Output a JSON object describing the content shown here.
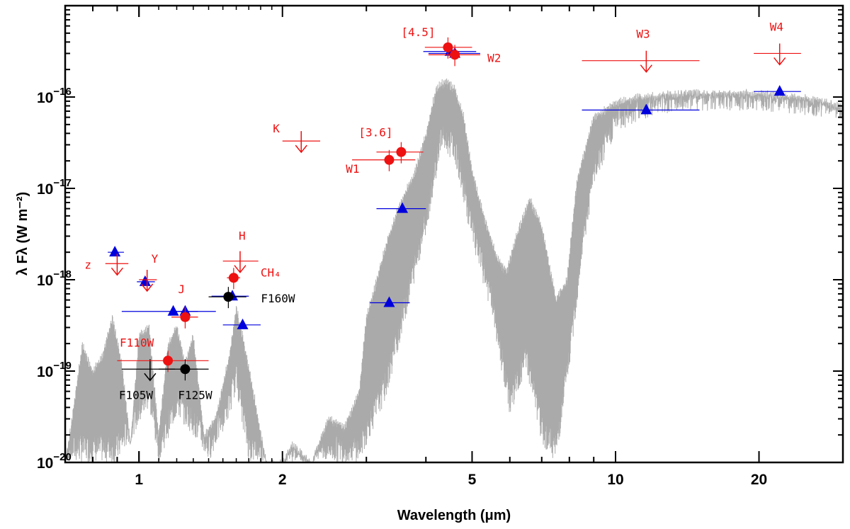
{
  "chart_data": {
    "type": "scatter",
    "title": "",
    "xlabel": "Wavelength (μm)",
    "ylabel": "λ Fλ (W m⁻²)",
    "xscale": "log",
    "yscale": "log",
    "xlim": [
      0.7,
      30
    ],
    "ylim": [
      1e-20,
      1e-15
    ],
    "x_ticks": [
      {
        "value": 1,
        "label": "1"
      },
      {
        "value": 2,
        "label": "2"
      },
      {
        "value": 5,
        "label": "5"
      },
      {
        "value": 10,
        "label": "10"
      },
      {
        "value": 20,
        "label": "20"
      }
    ],
    "y_ticks": [
      {
        "value": 1e-20,
        "base": "10",
        "exp": "−20"
      },
      {
        "value": 1e-19,
        "base": "10",
        "exp": "−19"
      },
      {
        "value": 1e-18,
        "base": "10",
        "exp": "−18"
      },
      {
        "value": 1e-17,
        "base": "10",
        "exp": "−17"
      },
      {
        "value": 1e-16,
        "base": "10",
        "exp": "−16"
      }
    ],
    "colors": {
      "model": "#aaaaaa",
      "observed": "#ee1111",
      "hst": "#000000",
      "synthetic": "#0000dd"
    },
    "model_spectrum": {
      "name": "model spectrum",
      "envelope": [
        [
          0.7,
          -20.0
        ],
        [
          0.72,
          -19.6
        ],
        [
          0.76,
          -18.7
        ],
        [
          0.8,
          -19.0
        ],
        [
          0.84,
          -18.8
        ],
        [
          0.88,
          -18.4
        ],
        [
          0.92,
          -18.9
        ],
        [
          0.96,
          -19.8
        ],
        [
          1.0,
          -18.6
        ],
        [
          1.05,
          -18.5
        ],
        [
          1.1,
          -19.7
        ],
        [
          1.15,
          -18.7
        ],
        [
          1.2,
          -18.5
        ],
        [
          1.25,
          -18.9
        ],
        [
          1.3,
          -18.6
        ],
        [
          1.37,
          -19.7
        ],
        [
          1.45,
          -19.5
        ],
        [
          1.55,
          -18.8
        ],
        [
          1.6,
          -18.3
        ],
        [
          1.65,
          -18.6
        ],
        [
          1.75,
          -19.3
        ],
        [
          1.85,
          -20.0
        ],
        [
          2.0,
          -20.0
        ],
        [
          2.1,
          -19.8
        ],
        [
          2.3,
          -20.0
        ],
        [
          2.5,
          -19.5
        ],
        [
          2.7,
          -19.6
        ],
        [
          2.9,
          -19.2
        ],
        [
          3.0,
          -18.4
        ],
        [
          3.15,
          -18.0
        ],
        [
          3.3,
          -17.6
        ],
        [
          3.5,
          -17.2
        ],
        [
          3.8,
          -16.8
        ],
        [
          4.0,
          -16.4
        ],
        [
          4.2,
          -15.9
        ],
        [
          4.4,
          -15.8
        ],
        [
          4.6,
          -15.9
        ],
        [
          4.8,
          -16.2
        ],
        [
          5.0,
          -16.8
        ],
        [
          5.3,
          -17.3
        ],
        [
          5.6,
          -17.7
        ],
        [
          5.9,
          -17.9
        ],
        [
          6.2,
          -17.5
        ],
        [
          6.6,
          -17.1
        ],
        [
          7.0,
          -17.4
        ],
        [
          7.5,
          -18.2
        ],
        [
          7.9,
          -18.0
        ],
        [
          8.3,
          -16.9
        ],
        [
          9.0,
          -16.2
        ],
        [
          10.0,
          -16.05
        ],
        [
          11.0,
          -16.0
        ],
        [
          12.0,
          -15.98
        ],
        [
          14.0,
          -15.95
        ],
        [
          16.0,
          -15.95
        ],
        [
          20.0,
          -15.95
        ],
        [
          25.0,
          -16.0
        ],
        [
          30.0,
          -16.1
        ]
      ],
      "trough": [
        [
          0.7,
          -20.0
        ],
        [
          0.9,
          -20.0
        ],
        [
          1.0,
          -19.6
        ],
        [
          1.05,
          -19.4
        ],
        [
          1.1,
          -20.0
        ],
        [
          1.2,
          -19.5
        ],
        [
          1.3,
          -19.7
        ],
        [
          1.4,
          -20.0
        ],
        [
          1.55,
          -19.5
        ],
        [
          1.6,
          -19.2
        ],
        [
          1.7,
          -20.0
        ],
        [
          2.9,
          -20.0
        ],
        [
          3.3,
          -19.3
        ],
        [
          3.6,
          -18.5
        ],
        [
          4.0,
          -17.5
        ],
        [
          4.3,
          -16.6
        ],
        [
          4.6,
          -16.7
        ],
        [
          5.0,
          -17.6
        ],
        [
          5.5,
          -18.4
        ],
        [
          6.0,
          -19.5
        ],
        [
          6.5,
          -19.0
        ],
        [
          7.0,
          -19.8
        ],
        [
          7.5,
          -20.0
        ],
        [
          8.0,
          -19.0
        ],
        [
          8.5,
          -17.8
        ],
        [
          9.0,
          -17.0
        ],
        [
          10.0,
          -16.4
        ],
        [
          12.0,
          -16.2
        ],
        [
          15.0,
          -16.15
        ],
        [
          20.0,
          -16.15
        ],
        [
          25.0,
          -16.2
        ],
        [
          30.0,
          -16.25
        ]
      ]
    },
    "series": [
      {
        "name": "observed photometry",
        "marker": "circle",
        "color": "#ee1111",
        "points": [
          {
            "label": "[4.5]",
            "x": 4.45,
            "y": 3.5e-16,
            "xlo": 3.98,
            "xhi": 5.0
          },
          {
            "label": "W2",
            "x": 4.6,
            "y": 2.9e-16,
            "xlo": 4.05,
            "xhi": 5.2
          },
          {
            "label": "[3.6]",
            "x": 3.55,
            "y": 2.5e-17,
            "xlo": 3.15,
            "xhi": 3.95
          },
          {
            "label": "W1",
            "x": 3.35,
            "y": 2.05e-17,
            "xlo": 2.8,
            "xhi": 3.8
          },
          {
            "label": "CH₄",
            "x": 1.58,
            "y": 1.05e-18,
            "xlo": 1.53,
            "xhi": 1.63
          },
          {
            "label": "J",
            "x": 1.25,
            "y": 3.9e-19,
            "xlo": 1.17,
            "xhi": 1.33
          },
          {
            "label": "F110W",
            "x": 1.15,
            "y": 1.3e-19,
            "xlo": 0.9,
            "xhi": 1.4
          }
        ]
      },
      {
        "name": "observed upper limits",
        "marker": "arrow",
        "color": "#ee1111",
        "points": [
          {
            "label": "z",
            "x": 0.9,
            "y": 1.5e-18,
            "xlo": 0.85,
            "xhi": 0.95
          },
          {
            "label": "Y",
            "x": 1.04,
            "y": 1e-18,
            "xlo": 1.0,
            "xhi": 1.09
          },
          {
            "label": "H",
            "x": 1.63,
            "y": 1.6e-18,
            "xlo": 1.5,
            "xhi": 1.78
          },
          {
            "label": "K",
            "x": 2.19,
            "y": 3.3e-17,
            "xlo": 2.0,
            "xhi": 2.4
          },
          {
            "label": "W3",
            "x": 11.6,
            "y": 2.5e-16,
            "xlo": 8.5,
            "xhi": 15.0
          },
          {
            "label": "W4",
            "x": 22.1,
            "y": 3e-16,
            "xlo": 19.5,
            "xhi": 24.5
          }
        ]
      },
      {
        "name": "HST photometry",
        "marker": "circle",
        "color": "#000000",
        "points": [
          {
            "label": "F160W",
            "x": 1.54,
            "y": 6.5e-19,
            "xlo": 1.4,
            "xhi": 1.68
          },
          {
            "label": "F125W",
            "x": 1.25,
            "y": 1.05e-19,
            "xlo": 1.1,
            "xhi": 1.4
          }
        ]
      },
      {
        "name": "HST upper limit",
        "marker": "arrow",
        "color": "#000000",
        "points": [
          {
            "label": "F105W",
            "x": 1.055,
            "y": 1.05e-19,
            "xlo": 0.92,
            "xhi": 1.19
          }
        ]
      },
      {
        "name": "synthetic model photometry",
        "marker": "triangle",
        "color": "#0000dd",
        "points": [
          {
            "x": 0.89,
            "y": 2e-18,
            "xlo": 0.86,
            "xhi": 0.93
          },
          {
            "x": 1.03,
            "y": 9.5e-19,
            "xlo": 0.99,
            "xhi": 1.08
          },
          {
            "x": 1.18,
            "y": 4.5e-19,
            "xlo": 0.92,
            "xhi": 1.45
          },
          {
            "x": 1.25,
            "y": 4.5e-19,
            "xlo": 1.17,
            "xhi": 1.33
          },
          {
            "x": 1.57,
            "y": 6.6e-19,
            "xlo": 1.42,
            "xhi": 1.7
          },
          {
            "x": 1.65,
            "y": 3.2e-19,
            "xlo": 1.5,
            "xhi": 1.8
          },
          {
            "x": 3.35,
            "y": 5.6e-19,
            "xlo": 3.05,
            "xhi": 3.7
          },
          {
            "x": 3.57,
            "y": 6e-18,
            "xlo": 3.15,
            "xhi": 4.0
          },
          {
            "x": 4.5,
            "y": 3.15e-16,
            "xlo": 3.95,
            "xhi": 5.1
          },
          {
            "x": 4.6,
            "y": 3e-16,
            "xlo": 4.05,
            "xhi": 5.2
          },
          {
            "x": 11.6,
            "y": 7.2e-17,
            "xlo": 8.5,
            "xhi": 15.0
          },
          {
            "x": 22.1,
            "y": 1.15e-16,
            "xlo": 19.5,
            "xhi": 24.5
          }
        ]
      }
    ]
  }
}
